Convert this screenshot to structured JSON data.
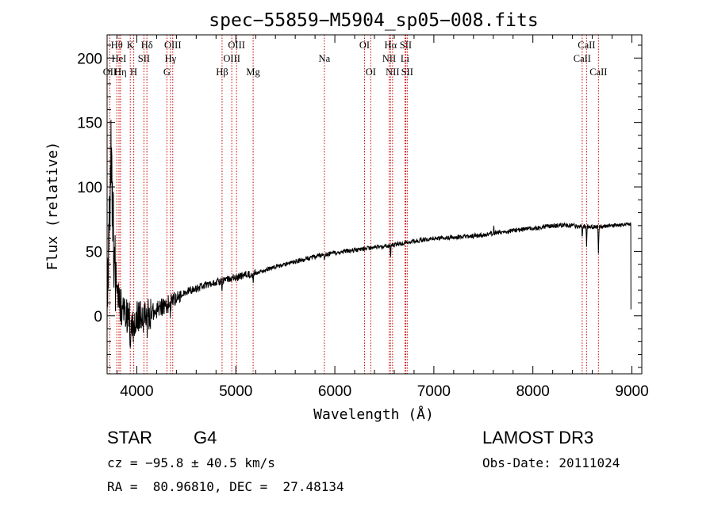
{
  "chart_data": {
    "type": "line",
    "title": "spec−55859−M5904_sp05−008.fits",
    "xlabel": "Wavelength (Å)",
    "ylabel": "Flux (relative)",
    "xlim": [
      3700,
      9100
    ],
    "ylim": [
      -45,
      218
    ],
    "x_ticks": [
      4000,
      5000,
      6000,
      7000,
      8000,
      9000
    ],
    "y_ticks": [
      0,
      50,
      100,
      150,
      200
    ],
    "colors": {
      "spectrum": "#000000",
      "line_markers": "#cc0000",
      "axes": "#000000"
    },
    "spectral_lines": [
      {
        "label": "OII",
        "wavelength": 3727,
        "row": 3
      },
      {
        "label": "Hθ",
        "wavelength": 3798,
        "row": 1
      },
      {
        "label": "HeI",
        "wavelength": 3820,
        "row": 2
      },
      {
        "label": "Hη",
        "wavelength": 3835,
        "row": 3
      },
      {
        "label": "K",
        "wavelength": 3934,
        "row": 1
      },
      {
        "label": "SII",
        "wavelength": 4072,
        "row": 2
      },
      {
        "label": "H",
        "wavelength": 3969,
        "row": 3
      },
      {
        "label": "Hδ",
        "wavelength": 4102,
        "row": 1
      },
      {
        "label": "OIII",
        "wavelength": 4363,
        "row": 1
      },
      {
        "label": "Hγ",
        "wavelength": 4340,
        "row": 2
      },
      {
        "label": "G",
        "wavelength": 4304,
        "row": 3
      },
      {
        "label": "Hβ",
        "wavelength": 4861,
        "row": 3
      },
      {
        "label": "OIII",
        "wavelength": 5007,
        "row": 1
      },
      {
        "label": "OIII",
        "wavelength": 4959,
        "row": 2
      },
      {
        "label": "Mg",
        "wavelength": 5175,
        "row": 3
      },
      {
        "label": "Na",
        "wavelength": 5894,
        "row": 2
      },
      {
        "label": "OI",
        "wavelength": 6300,
        "row": 1
      },
      {
        "label": "OI",
        "wavelength": 6363,
        "row": 3
      },
      {
        "label": "Hα",
        "wavelength": 6563,
        "row": 1
      },
      {
        "label": "NII",
        "wavelength": 6548,
        "row": 2
      },
      {
        "label": "NII",
        "wavelength": 6583,
        "row": 3
      },
      {
        "label": "SII",
        "wavelength": 6716,
        "row": 1
      },
      {
        "label": "Li",
        "wavelength": 6708,
        "row": 2
      },
      {
        "label": "SII",
        "wavelength": 6731,
        "row": 3
      },
      {
        "label": "CaII",
        "wavelength": 8542,
        "row": 1
      },
      {
        "label": "CaII",
        "wavelength": 8498,
        "row": 2
      },
      {
        "label": "CaII",
        "wavelength": 8662,
        "row": 3
      }
    ],
    "spectrum_anchors": [
      [
        3700,
        5
      ],
      [
        3720,
        60
      ],
      [
        3740,
        120
      ],
      [
        3760,
        80
      ],
      [
        3780,
        30
      ],
      [
        3800,
        15
      ],
      [
        3850,
        5
      ],
      [
        3900,
        0
      ],
      [
        3950,
        -2
      ],
      [
        4000,
        0
      ],
      [
        4050,
        -3
      ],
      [
        4100,
        0
      ],
      [
        4150,
        3
      ],
      [
        4200,
        5
      ],
      [
        4300,
        8
      ],
      [
        4400,
        14
      ],
      [
        4500,
        19
      ],
      [
        4600,
        21
      ],
      [
        4700,
        24
      ],
      [
        4800,
        26
      ],
      [
        4900,
        28
      ],
      [
        5000,
        30
      ],
      [
        5200,
        33
      ],
      [
        5400,
        38
      ],
      [
        5600,
        42
      ],
      [
        5800,
        46
      ],
      [
        6000,
        49
      ],
      [
        6200,
        51
      ],
      [
        6400,
        53
      ],
      [
        6600,
        55
      ],
      [
        6800,
        58
      ],
      [
        7000,
        60
      ],
      [
        7200,
        61
      ],
      [
        7400,
        62
      ],
      [
        7600,
        64
      ],
      [
        7800,
        66
      ],
      [
        8000,
        68
      ],
      [
        8200,
        70
      ],
      [
        8400,
        70
      ],
      [
        8600,
        69
      ],
      [
        8800,
        70
      ],
      [
        8990,
        71
      ]
    ],
    "spectrum_features": [
      {
        "center": 3934,
        "depth": 18,
        "width": 6
      },
      {
        "center": 3969,
        "depth": 16,
        "width": 6
      },
      {
        "center": 4102,
        "depth": 6,
        "width": 5
      },
      {
        "center": 4304,
        "depth": 6,
        "width": 6
      },
      {
        "center": 4340,
        "depth": 6,
        "width": 4
      },
      {
        "center": 4861,
        "depth": 6,
        "width": 4
      },
      {
        "center": 5175,
        "depth": 5,
        "width": 6
      },
      {
        "center": 5894,
        "depth": 4,
        "width": 4
      },
      {
        "center": 6563,
        "depth": 12,
        "width": 3
      },
      {
        "center": 7605,
        "depth": -8,
        "width": 3
      },
      {
        "center": 8498,
        "depth": 8,
        "width": 4
      },
      {
        "center": 8542,
        "depth": 14,
        "width": 4
      },
      {
        "center": 8662,
        "depth": 20,
        "width": 4
      }
    ]
  },
  "info": {
    "object_type": "STAR",
    "subclass": "G4",
    "survey": "LAMOST DR3",
    "cz": "cz = −95.8 ± 40.5 km/s",
    "obs_date": "Obs-Date: 20111024",
    "radec": "RA =  80.96810, DEC =  27.48134"
  }
}
